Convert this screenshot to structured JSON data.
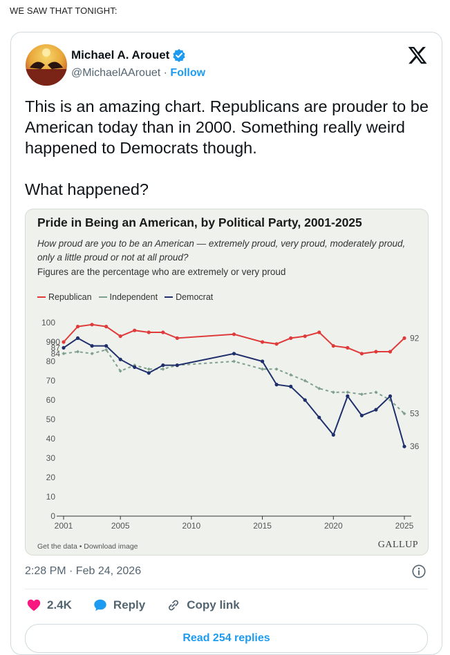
{
  "caption": "WE SAW THAT TONIGHT:",
  "tweet": {
    "author_name": "Michael A. Arouet",
    "handle": "@MichaelAArouet",
    "separator": "·",
    "follow_label": "Follow",
    "text_paragraphs": [
      "This is an amazing chart. Republicans are prouder to be American today than in 2000. Something really weird happened to Democrats though.",
      "What happened?"
    ],
    "time": "2:28 PM · Feb 24, 2026",
    "likes": "2.4K",
    "reply_label": "Reply",
    "copy_link_label": "Copy link",
    "read_replies_label": "Read 254 replies"
  },
  "colors": {
    "republican": "#e03b3b",
    "independent": "#7fa08c",
    "democrat": "#1f2f6b",
    "link": "#1d9bf0",
    "like": "#f91880"
  },
  "chart_data": {
    "type": "line",
    "title": "Pride in Being an American, by Political Party, 2001-2025",
    "subtitle": "How proud are you to be an American — extremely proud, very proud, moderately proud, only a little proud or not at all proud?",
    "note": "Figures are the percentage who are extremely or very proud",
    "footer_left": "Get the data • Download image",
    "source": "GALLUP",
    "ylim": [
      0,
      100
    ],
    "y_ticks": [
      0,
      10,
      20,
      30,
      40,
      50,
      60,
      70,
      80,
      90,
      100
    ],
    "x_ticks": [
      2001,
      2005,
      2010,
      2015,
      2020,
      2025
    ],
    "x_range": [
      2001,
      2025
    ],
    "legend_placement": "top-left",
    "grid": false,
    "series": [
      {
        "name": "Republican",
        "style": "solid",
        "start_label": "90",
        "end_label": "92",
        "points": [
          [
            2001,
            90
          ],
          [
            2002,
            98
          ],
          [
            2003,
            99
          ],
          [
            2004,
            98
          ],
          [
            2005,
            93
          ],
          [
            2006,
            96
          ],
          [
            2007,
            95
          ],
          [
            2008,
            95
          ],
          [
            2009,
            92
          ],
          [
            2013,
            94
          ],
          [
            2015,
            90
          ],
          [
            2016,
            89
          ],
          [
            2017,
            92
          ],
          [
            2018,
            93
          ],
          [
            2019,
            95
          ],
          [
            2020,
            88
          ],
          [
            2021,
            87
          ],
          [
            2022,
            84
          ],
          [
            2023,
            85
          ],
          [
            2024,
            85
          ],
          [
            2025,
            92
          ]
        ]
      },
      {
        "name": "Independent",
        "style": "dashed",
        "start_label": "84",
        "end_label": "53",
        "points": [
          [
            2001,
            84
          ],
          [
            2002,
            85
          ],
          [
            2003,
            84
          ],
          [
            2004,
            86
          ],
          [
            2005,
            75
          ],
          [
            2006,
            78
          ],
          [
            2007,
            76
          ],
          [
            2008,
            76
          ],
          [
            2009,
            78
          ],
          [
            2013,
            80
          ],
          [
            2015,
            76
          ],
          [
            2016,
            76
          ],
          [
            2017,
            73
          ],
          [
            2018,
            70
          ],
          [
            2019,
            66
          ],
          [
            2020,
            64
          ],
          [
            2021,
            64
          ],
          [
            2022,
            63
          ],
          [
            2023,
            64
          ],
          [
            2024,
            60
          ],
          [
            2025,
            53
          ]
        ]
      },
      {
        "name": "Democrat",
        "style": "solid",
        "start_label": "87",
        "end_label": "36",
        "points": [
          [
            2001,
            87
          ],
          [
            2002,
            92
          ],
          [
            2003,
            88
          ],
          [
            2004,
            88
          ],
          [
            2005,
            81
          ],
          [
            2006,
            77
          ],
          [
            2007,
            74
          ],
          [
            2008,
            78
          ],
          [
            2009,
            78
          ],
          [
            2013,
            84
          ],
          [
            2015,
            80
          ],
          [
            2016,
            68
          ],
          [
            2017,
            67
          ],
          [
            2018,
            60
          ],
          [
            2019,
            51
          ],
          [
            2020,
            42
          ],
          [
            2021,
            62
          ],
          [
            2022,
            52
          ],
          [
            2023,
            55
          ],
          [
            2024,
            62
          ],
          [
            2025,
            36
          ]
        ]
      }
    ]
  }
}
